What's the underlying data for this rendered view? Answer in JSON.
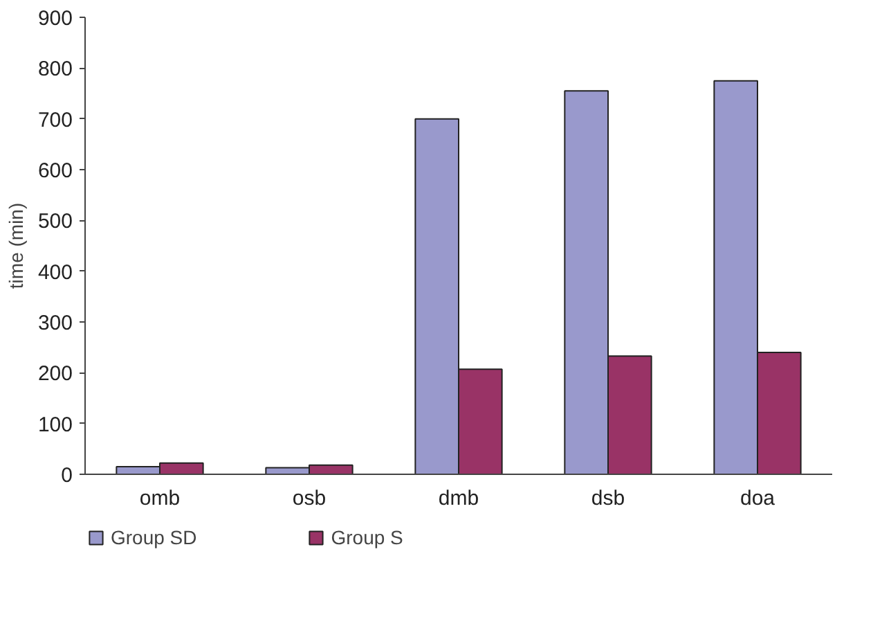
{
  "chart_data": {
    "type": "bar",
    "ylabel": "time (min)",
    "categories": [
      "omb",
      "osb",
      "dmb",
      "dsb",
      "doa"
    ],
    "series": [
      {
        "name": "Group SD",
        "color": "#9999cc",
        "values": [
          15,
          13,
          700,
          755,
          775
        ]
      },
      {
        "name": "Group S",
        "color": "#993366",
        "values": [
          22,
          18,
          207,
          233,
          240
        ]
      }
    ],
    "ylim": [
      0,
      900
    ],
    "yticks": [
      0,
      100,
      200,
      300,
      400,
      500,
      600,
      700,
      800,
      900
    ],
    "grid": false,
    "legend": "bottom"
  }
}
